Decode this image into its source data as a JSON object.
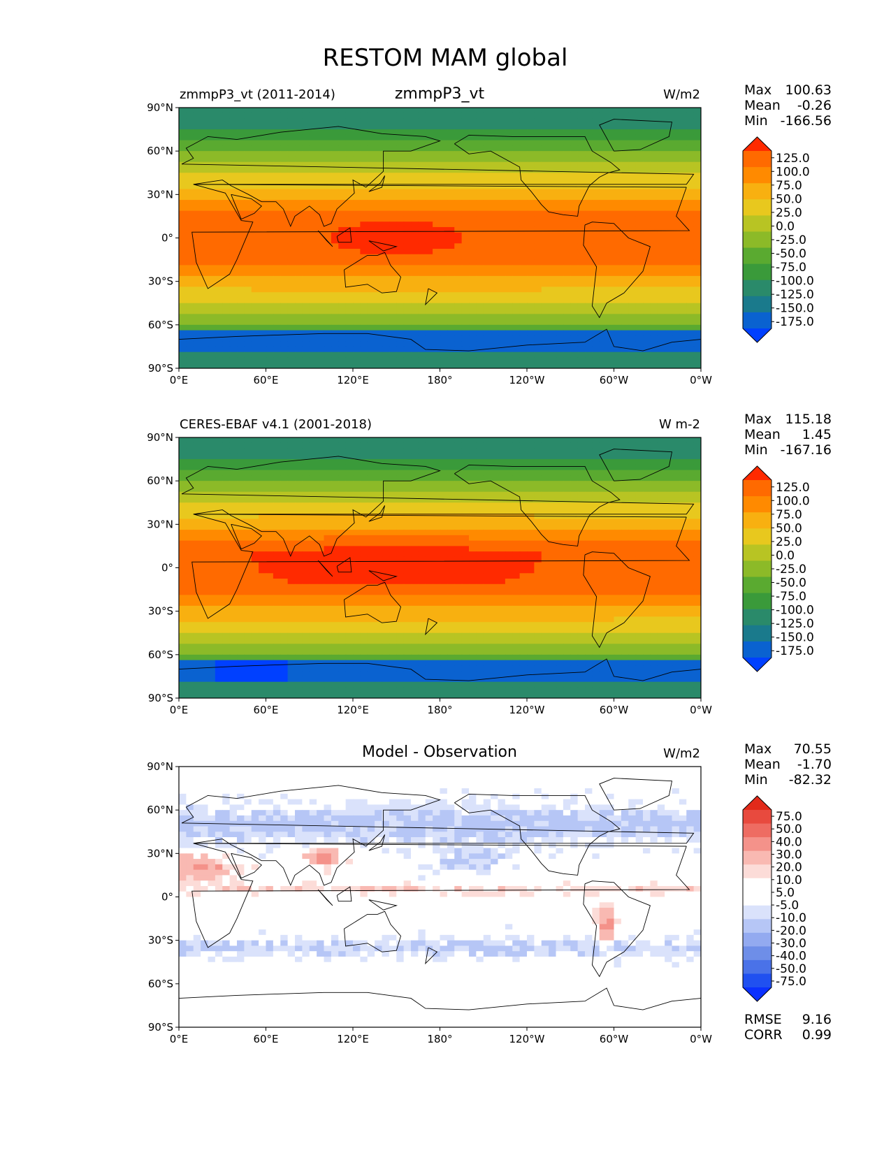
{
  "figure": {
    "title": "RESTOM MAM global"
  },
  "axes": {
    "lon_ticks": [
      "0°E",
      "60°E",
      "120°E",
      "180°",
      "120°W",
      "60°W",
      "0°W"
    ],
    "lat_ticks": [
      "90°N",
      "60°N",
      "30°N",
      "0°",
      "30°S",
      "60°S",
      "90°S"
    ]
  },
  "colors": {
    "abs_levels": [
      "#0040ff",
      "#0a62d0",
      "#1a7a8c",
      "#2a8a6a",
      "#3a9a3a",
      "#5aaa30",
      "#8cba28",
      "#b8c423",
      "#e8c81e",
      "#f8b010",
      "#ff8a00",
      "#ff6a00",
      "#ff2a00"
    ],
    "diff_levels": [
      "#0a30ff",
      "#2050f0",
      "#4a72e8",
      "#6e8ee8",
      "#93aaf0",
      "#b6c6f6",
      "#dae2fb",
      "#ffffff",
      "#ffffff",
      "#fcdcd8",
      "#f9b9b2",
      "#f4928a",
      "#ee6c62",
      "#e84a3e",
      "#e22a1a"
    ],
    "coast": "#000000",
    "frame": "#000000"
  },
  "panels": [
    {
      "left_label": "zmmpP3_vt (2011-2014)",
      "center_title": "zmmpP3_vt",
      "units": "W/m2",
      "stats": [
        {
          "label": "Max",
          "value": "100.63"
        },
        {
          "label": "Mean",
          "value": "-0.26"
        },
        {
          "label": "Min",
          "value": "-166.56"
        }
      ],
      "colorbar_labels": [
        "125.0",
        "100.0",
        "75.0",
        "50.0",
        "25.0",
        "0.0",
        "-25.0",
        "-50.0",
        "-75.0",
        "-100.0",
        "-125.0",
        "-150.0",
        "-175.0"
      ]
    },
    {
      "left_label": "CERES-EBAF v4.1 (2001-2018)",
      "center_title": "",
      "units": "W m-2",
      "stats": [
        {
          "label": "Max",
          "value": "115.18"
        },
        {
          "label": "Mean",
          "value": "1.45"
        },
        {
          "label": "Min",
          "value": "-167.16"
        }
      ],
      "colorbar_labels": [
        "125.0",
        "100.0",
        "75.0",
        "50.0",
        "25.0",
        "0.0",
        "-25.0",
        "-50.0",
        "-75.0",
        "-100.0",
        "-125.0",
        "-150.0",
        "-175.0"
      ]
    },
    {
      "left_label": "",
      "center_title": "Model - Observation",
      "units": "W/m2",
      "stats": [
        {
          "label": "Max",
          "value": "70.55"
        },
        {
          "label": "Mean",
          "value": "-1.70"
        },
        {
          "label": "Min",
          "value": "-82.32"
        }
      ],
      "colorbar_labels": [
        "75.0",
        "50.0",
        "40.0",
        "30.0",
        "20.0",
        "10.0",
        "5.0",
        "-5.0",
        "-10.0",
        "-20.0",
        "-30.0",
        "-40.0",
        "-50.0",
        "-75.0"
      ],
      "metrics": [
        {
          "label": "RMSE",
          "value": "9.16"
        },
        {
          "label": "CORR",
          "value": "0.99"
        }
      ]
    }
  ]
}
